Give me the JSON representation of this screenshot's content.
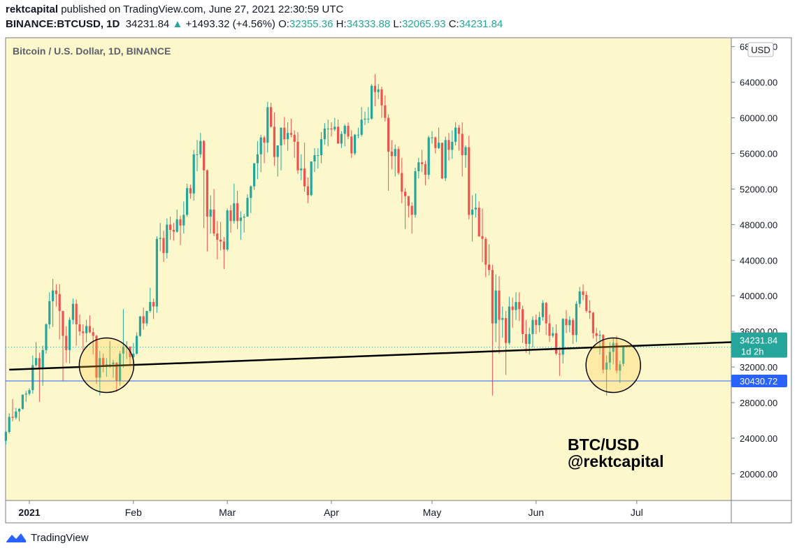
{
  "header": {
    "author": "rektcapital",
    "published_text": "published on TradingView.com, June 27, 2021 22:30:59 UTC",
    "symbol": "BINANCE:BTCUSD, 1D",
    "last": "34231.84",
    "change": "+1493.32 (+4.56%)",
    "o_label": "O:",
    "o_value": "32355.36",
    "h_label": "H:",
    "h_value": "34333.88",
    "l_label": "L:",
    "l_value": "32065.93",
    "c_label": "C:",
    "c_value": "34231.84"
  },
  "footer": {
    "brand": "TradingView"
  },
  "colors": {
    "bg": "#fdf7cc",
    "up": "#26a69a",
    "down": "#ef5350",
    "support": "#2962ff",
    "trend": "#000000"
  },
  "chart_data": {
    "type": "candlestick",
    "title": "Bitcoin / U.S. Dollar, 1D, BINANCE",
    "currency": "USD",
    "y_ticks": [
      "68000.00",
      "64000.00",
      "60000.00",
      "56000.00",
      "52000.00",
      "48000.00",
      "44000.00",
      "40000.00",
      "36000.00",
      "32000.00",
      "28000.00",
      "24000.00",
      "20000.00"
    ],
    "x_ticks": [
      "2021",
      "Feb",
      "Mar",
      "Apr",
      "May",
      "Jun",
      "Jul"
    ],
    "ylim": [
      17000,
      69000
    ],
    "price_label": "34231.84",
    "countdown_label": "1d 2h",
    "support_level": 30430.72,
    "support_label": "30430.72",
    "last_price": 34231.84,
    "annotation": [
      "BTC/USD",
      "@rektcapital"
    ],
    "trendline": [
      {
        "x": "2020-12-26",
        "y": 31700
      },
      {
        "x": "2021-07-30",
        "y": 34800
      }
    ],
    "circles": [
      "2021-01-24",
      "2021-06-24"
    ],
    "candles": [
      [
        "2020-12-25",
        23700,
        24800,
        23300,
        24700
      ],
      [
        "2020-12-26",
        24700,
        26800,
        24500,
        26400
      ],
      [
        "2020-12-27",
        26400,
        28400,
        25900,
        26300
      ],
      [
        "2020-12-28",
        26300,
        27400,
        26100,
        27000
      ],
      [
        "2020-12-29",
        27000,
        27400,
        25900,
        27300
      ],
      [
        "2020-12-30",
        27300,
        28900,
        27200,
        28900
      ],
      [
        "2020-12-31",
        28900,
        29300,
        28100,
        29000
      ],
      [
        "2021-01-01",
        29000,
        29600,
        28800,
        29400
      ],
      [
        "2021-01-02",
        29400,
        33300,
        29000,
        32200
      ],
      [
        "2021-01-03",
        32200,
        34800,
        32000,
        33000
      ],
      [
        "2021-01-04",
        33000,
        33600,
        28100,
        31900
      ],
      [
        "2021-01-05",
        31900,
        34400,
        29900,
        33900
      ],
      [
        "2021-01-06",
        33900,
        36900,
        33500,
        36800
      ],
      [
        "2021-01-07",
        36800,
        40400,
        36300,
        39400
      ],
      [
        "2021-01-08",
        39400,
        41900,
        36500,
        40600
      ],
      [
        "2021-01-09",
        40600,
        41300,
        38800,
        40200
      ],
      [
        "2021-01-10",
        40200,
        41300,
        35100,
        38300
      ],
      [
        "2021-01-11",
        38300,
        38300,
        30400,
        35500
      ],
      [
        "2021-01-12",
        35500,
        36600,
        32500,
        33900
      ],
      [
        "2021-01-13",
        33900,
        37600,
        32400,
        37300
      ],
      [
        "2021-01-14",
        37300,
        39700,
        36800,
        39100
      ],
      [
        "2021-01-15",
        39100,
        39600,
        34400,
        36800
      ],
      [
        "2021-01-16",
        36800,
        37900,
        35500,
        36000
      ],
      [
        "2021-01-17",
        36000,
        36800,
        33900,
        35800
      ],
      [
        "2021-01-18",
        35800,
        37300,
        34800,
        36600
      ],
      [
        "2021-01-19",
        36600,
        37800,
        35800,
        35900
      ],
      [
        "2021-01-20",
        35900,
        36400,
        33400,
        35500
      ],
      [
        "2021-01-21",
        35500,
        35600,
        30100,
        30800
      ],
      [
        "2021-01-22",
        30800,
        33800,
        28800,
        33000
      ],
      [
        "2021-01-23",
        33000,
        33500,
        31400,
        32100
      ],
      [
        "2021-01-24",
        32100,
        33000,
        30900,
        32300
      ],
      [
        "2021-01-25",
        32300,
        34900,
        31900,
        32300
      ],
      [
        "2021-01-26",
        32300,
        32800,
        30800,
        32500
      ],
      [
        "2021-01-27",
        32500,
        32500,
        29200,
        30400
      ],
      [
        "2021-01-28",
        30400,
        33800,
        29900,
        33500
      ],
      [
        "2021-01-29",
        33500,
        38500,
        31900,
        34300
      ],
      [
        "2021-01-30",
        34300,
        34900,
        32900,
        34300
      ],
      [
        "2021-01-31",
        34300,
        34300,
        32300,
        33100
      ],
      [
        "2021-02-01",
        33100,
        34700,
        32300,
        33500
      ],
      [
        "2021-02-02",
        33500,
        35900,
        33400,
        35500
      ],
      [
        "2021-02-03",
        35500,
        37700,
        35400,
        37700
      ],
      [
        "2021-02-04",
        37700,
        38700,
        36200,
        36900
      ],
      [
        "2021-02-05",
        36900,
        38300,
        36600,
        38300
      ],
      [
        "2021-02-06",
        38300,
        40900,
        38100,
        39300
      ],
      [
        "2021-02-07",
        39300,
        39700,
        37400,
        38800
      ],
      [
        "2021-02-08",
        38800,
        46700,
        38100,
        46400
      ],
      [
        "2021-02-09",
        46400,
        48200,
        45000,
        46500
      ],
      [
        "2021-02-10",
        46500,
        47300,
        43800,
        44800
      ],
      [
        "2021-02-11",
        44800,
        48700,
        44200,
        48000
      ],
      [
        "2021-02-12",
        48000,
        48900,
        46300,
        47400
      ],
      [
        "2021-02-13",
        47400,
        48200,
        46200,
        47200
      ],
      [
        "2021-02-14",
        47200,
        49700,
        47100,
        48600
      ],
      [
        "2021-02-15",
        48600,
        49000,
        45700,
        47900
      ],
      [
        "2021-02-16",
        47900,
        50600,
        47000,
        49100
      ],
      [
        "2021-02-17",
        49100,
        52600,
        48900,
        52100
      ],
      [
        "2021-02-18",
        52100,
        52500,
        50900,
        51500
      ],
      [
        "2021-02-19",
        51500,
        56400,
        50700,
        55900
      ],
      [
        "2021-02-20",
        55900,
        57500,
        54000,
        55900
      ],
      [
        "2021-02-21",
        55900,
        58300,
        55500,
        57400
      ],
      [
        "2021-02-22",
        57400,
        57500,
        47600,
        54100
      ],
      [
        "2021-02-23",
        54100,
        54200,
        45000,
        48900
      ],
      [
        "2021-02-24",
        48900,
        51300,
        47000,
        49700
      ],
      [
        "2021-02-25",
        49700,
        52000,
        46700,
        47000
      ],
      [
        "2021-02-26",
        47000,
        48400,
        44100,
        46300
      ],
      [
        "2021-02-27",
        46300,
        48300,
        45100,
        46100
      ],
      [
        "2021-02-28",
        46100,
        46600,
        43000,
        45200
      ],
      [
        "2021-03-01",
        45200,
        49800,
        45000,
        49600
      ],
      [
        "2021-03-02",
        49600,
        50200,
        47100,
        48400
      ],
      [
        "2021-03-03",
        48400,
        52600,
        48100,
        50400
      ],
      [
        "2021-03-04",
        50400,
        51800,
        47500,
        48400
      ],
      [
        "2021-03-05",
        48400,
        49500,
        46300,
        48800
      ],
      [
        "2021-03-06",
        48800,
        49200,
        47100,
        48900
      ],
      [
        "2021-03-07",
        48900,
        51400,
        48900,
        51000
      ],
      [
        "2021-03-08",
        51000,
        52400,
        49300,
        52300
      ],
      [
        "2021-03-09",
        52300,
        54900,
        51900,
        54900
      ],
      [
        "2021-03-10",
        54900,
        57400,
        53100,
        55900
      ],
      [
        "2021-03-11",
        55900,
        58100,
        53900,
        57800
      ],
      [
        "2021-03-12",
        57800,
        58000,
        54900,
        57200
      ],
      [
        "2021-03-13",
        57200,
        61800,
        56100,
        61200
      ],
      [
        "2021-03-14",
        61200,
        61700,
        58900,
        59000
      ],
      [
        "2021-03-15",
        59000,
        60600,
        54600,
        55600
      ],
      [
        "2021-03-16",
        55600,
        56900,
        53400,
        56900
      ],
      [
        "2021-03-17",
        56900,
        58900,
        54100,
        58900
      ],
      [
        "2021-03-18",
        58900,
        60100,
        57000,
        57600
      ],
      [
        "2021-03-19",
        57600,
        59500,
        56300,
        58300
      ],
      [
        "2021-03-20",
        58300,
        59900,
        57800,
        58100
      ],
      [
        "2021-03-21",
        58100,
        58600,
        55500,
        57300
      ],
      [
        "2021-03-22",
        57300,
        58400,
        53700,
        54100
      ],
      [
        "2021-03-23",
        54100,
        55900,
        53000,
        54300
      ],
      [
        "2021-03-24",
        54300,
        57200,
        51700,
        52300
      ],
      [
        "2021-03-25",
        52300,
        53300,
        50400,
        51300
      ],
      [
        "2021-03-26",
        51300,
        55100,
        51200,
        55100
      ],
      [
        "2021-03-27",
        55100,
        56600,
        53900,
        55800
      ],
      [
        "2021-03-28",
        55800,
        56600,
        54300,
        55800
      ],
      [
        "2021-03-29",
        55800,
        58400,
        54900,
        57600
      ],
      [
        "2021-03-30",
        57600,
        59400,
        57000,
        58800
      ],
      [
        "2021-03-31",
        58800,
        59800,
        56800,
        58800
      ],
      [
        "2021-04-01",
        58800,
        59500,
        57900,
        58700
      ],
      [
        "2021-04-02",
        58700,
        60000,
        58500,
        59000
      ],
      [
        "2021-04-03",
        59000,
        59800,
        57100,
        57100
      ],
      [
        "2021-04-04",
        57100,
        58500,
        56600,
        58200
      ],
      [
        "2021-04-05",
        58200,
        59300,
        56800,
        59100
      ],
      [
        "2021-04-06",
        59100,
        59500,
        57600,
        57900
      ],
      [
        "2021-04-07",
        57900,
        58600,
        55500,
        56000
      ],
      [
        "2021-04-08",
        56000,
        58200,
        55800,
        58100
      ],
      [
        "2021-04-09",
        58100,
        58900,
        57700,
        58100
      ],
      [
        "2021-04-10",
        58100,
        61200,
        57900,
        59800
      ],
      [
        "2021-04-11",
        59800,
        60700,
        59200,
        59900
      ],
      [
        "2021-04-12",
        59900,
        61200,
        59400,
        59900
      ],
      [
        "2021-04-13",
        59900,
        63800,
        59800,
        63600
      ],
      [
        "2021-04-14",
        63600,
        64900,
        61300,
        62900
      ],
      [
        "2021-04-15",
        62900,
        63800,
        62100,
        63200
      ],
      [
        "2021-04-16",
        63200,
        63500,
        60000,
        61400
      ],
      [
        "2021-04-17",
        61400,
        62500,
        59600,
        60000
      ],
      [
        "2021-04-18",
        60000,
        60400,
        51800,
        56200
      ],
      [
        "2021-04-19",
        56200,
        57500,
        54200,
        55700
      ],
      [
        "2021-04-20",
        55700,
        57000,
        53400,
        56500
      ],
      [
        "2021-04-21",
        56500,
        56800,
        53600,
        53800
      ],
      [
        "2021-04-22",
        53800,
        55500,
        50400,
        51700
      ],
      [
        "2021-04-23",
        51700,
        52100,
        47500,
        51200
      ],
      [
        "2021-04-24",
        51200,
        51200,
        48800,
        50100
      ],
      [
        "2021-04-25",
        50100,
        50500,
        47000,
        49100
      ],
      [
        "2021-04-26",
        49100,
        54400,
        48800,
        54000
      ],
      [
        "2021-04-27",
        54000,
        55500,
        53200,
        55000
      ],
      [
        "2021-04-28",
        55000,
        56400,
        53900,
        54800
      ],
      [
        "2021-04-29",
        54800,
        55200,
        52400,
        53600
      ],
      [
        "2021-04-30",
        53600,
        58000,
        53100,
        57800
      ],
      [
        "2021-05-01",
        57800,
        58500,
        57100,
        57800
      ],
      [
        "2021-05-02",
        57800,
        57900,
        56000,
        56600
      ],
      [
        "2021-05-03",
        56600,
        58900,
        56500,
        57200
      ],
      [
        "2021-05-04",
        57200,
        57200,
        53100,
        53200
      ],
      [
        "2021-05-05",
        53200,
        57900,
        52900,
        57500
      ],
      [
        "2021-05-06",
        57500,
        58300,
        55200,
        56400
      ],
      [
        "2021-05-07",
        56400,
        58600,
        55400,
        57300
      ],
      [
        "2021-05-08",
        57300,
        59500,
        56900,
        58900
      ],
      [
        "2021-05-09",
        58900,
        59200,
        56300,
        58200
      ],
      [
        "2021-05-10",
        58200,
        59500,
        53400,
        55800
      ],
      [
        "2021-05-11",
        55800,
        56900,
        54400,
        56700
      ],
      [
        "2021-05-12",
        56700,
        58000,
        48600,
        49100
      ],
      [
        "2021-05-13",
        49100,
        51300,
        46100,
        49700
      ],
      [
        "2021-05-14",
        49700,
        51500,
        48800,
        49900
      ],
      [
        "2021-05-15",
        49900,
        50600,
        46600,
        46700
      ],
      [
        "2021-05-16",
        46700,
        49800,
        43800,
        46400
      ],
      [
        "2021-05-17",
        46400,
        46600,
        42100,
        43500
      ],
      [
        "2021-05-18",
        43500,
        45800,
        42300,
        42900
      ],
      [
        "2021-05-19",
        42900,
        43500,
        28800,
        36900
      ],
      [
        "2021-05-20",
        36900,
        42400,
        34800,
        40600
      ],
      [
        "2021-05-21",
        40600,
        42200,
        33500,
        37300
      ],
      [
        "2021-05-22",
        37300,
        38800,
        35300,
        37500
      ],
      [
        "2021-05-23",
        37500,
        38300,
        31100,
        34700
      ],
      [
        "2021-05-24",
        34700,
        39900,
        34500,
        38800
      ],
      [
        "2021-05-25",
        38800,
        39800,
        36400,
        38400
      ],
      [
        "2021-05-26",
        38400,
        40400,
        37300,
        39300
      ],
      [
        "2021-05-27",
        39300,
        40400,
        37200,
        38500
      ],
      [
        "2021-05-28",
        38500,
        38900,
        34700,
        35700
      ],
      [
        "2021-05-29",
        35700,
        37300,
        33600,
        34600
      ],
      [
        "2021-05-30",
        34600,
        36400,
        33400,
        35700
      ],
      [
        "2021-05-31",
        35700,
        37700,
        34200,
        37300
      ],
      [
        "2021-06-01",
        37300,
        37900,
        35700,
        36700
      ],
      [
        "2021-06-02",
        36700,
        38200,
        35900,
        37600
      ],
      [
        "2021-06-03",
        37600,
        39500,
        37200,
        39200
      ],
      [
        "2021-06-04",
        39200,
        39300,
        35600,
        36900
      ],
      [
        "2021-06-05",
        36900,
        37900,
        34800,
        35500
      ],
      [
        "2021-06-06",
        35500,
        36500,
        35300,
        35800
      ],
      [
        "2021-06-07",
        35800,
        36800,
        33300,
        33500
      ],
      [
        "2021-06-08",
        33500,
        34100,
        31000,
        33400
      ],
      [
        "2021-06-09",
        33400,
        37500,
        32400,
        37400
      ],
      [
        "2021-06-10",
        37400,
        38400,
        35800,
        36700
      ],
      [
        "2021-06-11",
        36700,
        37700,
        35900,
        37300
      ],
      [
        "2021-06-12",
        37300,
        37500,
        34600,
        35600
      ],
      [
        "2021-06-13",
        35600,
        39400,
        34800,
        39100
      ],
      [
        "2021-06-14",
        39100,
        41000,
        38700,
        40500
      ],
      [
        "2021-06-15",
        40500,
        41300,
        39500,
        40100
      ],
      [
        "2021-06-16",
        40100,
        40500,
        38100,
        38300
      ],
      [
        "2021-06-17",
        38300,
        39500,
        37400,
        38100
      ],
      [
        "2021-06-18",
        38100,
        38200,
        35200,
        35800
      ],
      [
        "2021-06-19",
        35800,
        36400,
        34800,
        35500
      ],
      [
        "2021-06-20",
        35500,
        36100,
        33400,
        35600
      ],
      [
        "2021-06-21",
        35600,
        35700,
        31300,
        31700
      ],
      [
        "2021-06-22",
        31700,
        33300,
        28800,
        32500
      ],
      [
        "2021-06-23",
        32500,
        34800,
        31700,
        33700
      ],
      [
        "2021-06-24",
        33700,
        35300,
        32300,
        34700
      ],
      [
        "2021-06-25",
        34700,
        35500,
        31300,
        31600
      ],
      [
        "2021-06-26",
        31600,
        32700,
        30200,
        32300
      ],
      [
        "2021-06-27",
        32355.36,
        34333.88,
        32065.93,
        34231.84
      ]
    ]
  }
}
